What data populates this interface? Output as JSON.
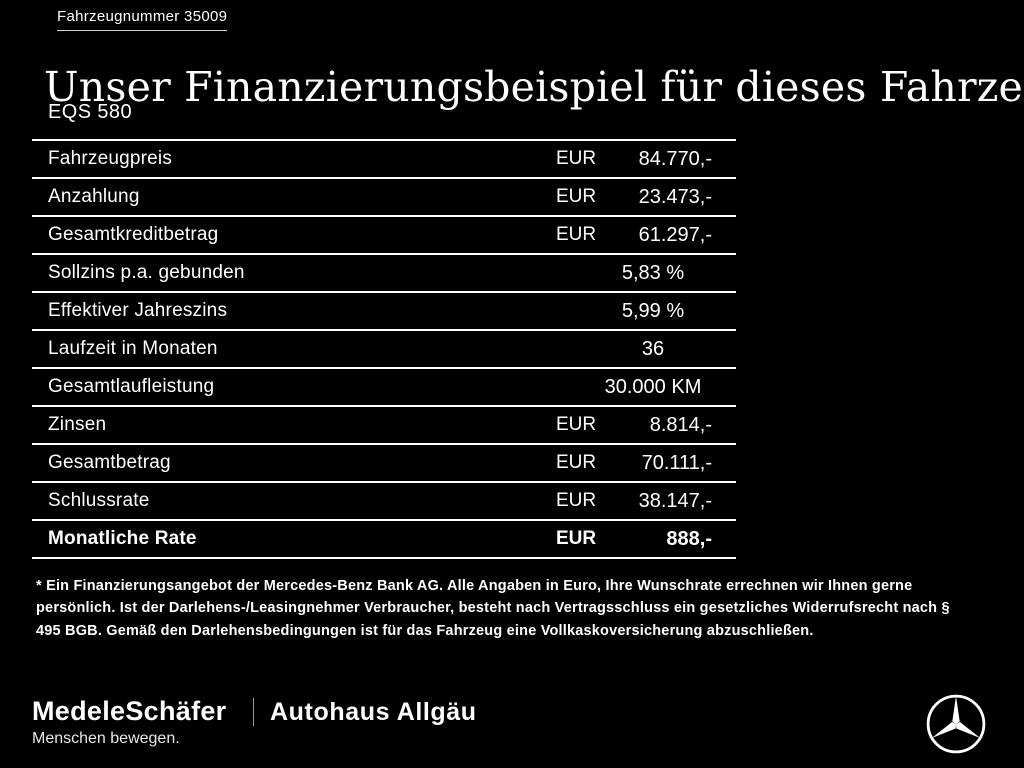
{
  "page": {
    "vehicle_number": "Fahrzeugnummer 35009",
    "title": "Unser Finanzierungsbeispiel für dieses Fahrzeug.*",
    "model": "EQS 580"
  },
  "table": {
    "rows": [
      {
        "label": "Fahrzeugpreis",
        "currency": "EUR",
        "value": "84.770,-",
        "bold": false
      },
      {
        "label": "Anzahlung",
        "currency": "EUR",
        "value": "23.473,-",
        "bold": false
      },
      {
        "label": "Gesamtkreditbetrag",
        "currency": "EUR",
        "value": "61.297,-",
        "bold": false
      },
      {
        "label": "Sollzins p.a. gebunden",
        "currency": "",
        "value": "5,83 %",
        "bold": false
      },
      {
        "label": "Effektiver Jahreszins",
        "currency": "",
        "value": "5,99 %",
        "bold": false
      },
      {
        "label": "Laufzeit in Monaten",
        "currency": "",
        "value": "36",
        "bold": false
      },
      {
        "label": "Gesamtlaufleistung",
        "currency": "",
        "value": "30.000 KM",
        "bold": false
      },
      {
        "label": "Zinsen",
        "currency": "EUR",
        "value": "8.814,-",
        "bold": false
      },
      {
        "label": "Gesamtbetrag",
        "currency": "EUR",
        "value": "70.111,-",
        "bold": false
      },
      {
        "label": "Schlussrate",
        "currency": "EUR",
        "value": "38.147,-",
        "bold": false
      },
      {
        "label": "Monatliche Rate",
        "currency": "EUR",
        "value": "888,-",
        "bold": true
      }
    ]
  },
  "footnote": "* Ein Finanzierungsangebot der Mercedes-Benz Bank AG. Alle Angaben in Euro, Ihre Wunschrate errechnen wir Ihnen gerne persönlich. Ist der Darlehens-/Leasingnehmer Verbraucher, besteht nach Vertragsschluss ein gesetzliches Widerrufsrecht nach § 495 BGB. Gemäß den Darlehensbedingungen ist für das Fahrzeug eine Vollkaskoversicherung abzuschließen.",
  "footer": {
    "dealer1_name": "MedeleSchäfer",
    "dealer1_tagline": "Menschen bewegen.",
    "dealer2_name": "Autohaus Allgäu",
    "brand_icon": "mercedes-star-icon"
  },
  "colors": {
    "background": "#000000",
    "text": "#ffffff",
    "line": "#ffffff"
  }
}
